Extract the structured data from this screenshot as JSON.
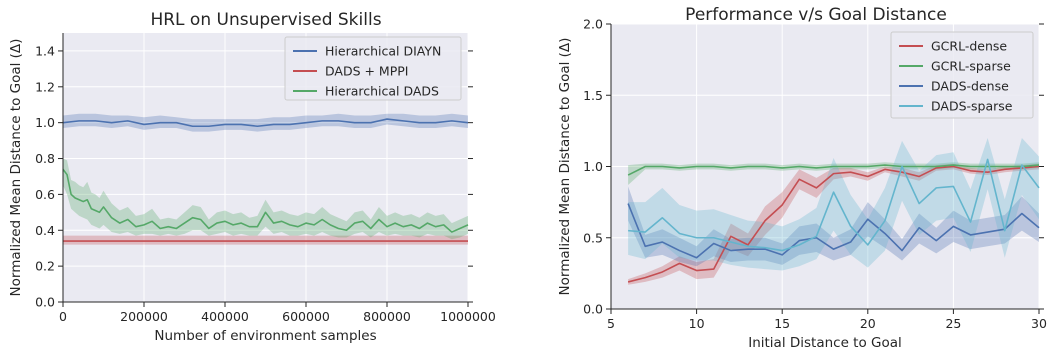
{
  "chart_data": [
    {
      "type": "line",
      "title": "HRL on Unsupervised Skills",
      "xlabel": "Number of environment samples",
      "ylabel": "Normalized Mean Distance to Goal (Δ)",
      "xlim": [
        0,
        1000000
      ],
      "ylim": [
        0.0,
        1.5
      ],
      "xticks": [
        0,
        200000,
        400000,
        600000,
        800000,
        1000000
      ],
      "xtick_labels": [
        "0",
        "200000",
        "400000",
        "600000",
        "800000",
        "1000000"
      ],
      "yticks": [
        0.0,
        0.2,
        0.4,
        0.6,
        0.8,
        1.0,
        1.2,
        1.4
      ],
      "ytick_labels": [
        "0.0",
        "0.2",
        "0.4",
        "0.6",
        "0.8",
        "1.0",
        "1.2",
        "1.4"
      ],
      "grid": true,
      "legend_position": "top-right",
      "series": [
        {
          "name": "Hierarchical DIAYN",
          "color": "#4c72b0",
          "x": [
            0,
            40000,
            80000,
            120000,
            160000,
            200000,
            240000,
            280000,
            320000,
            360000,
            400000,
            440000,
            480000,
            520000,
            560000,
            600000,
            640000,
            680000,
            720000,
            760000,
            800000,
            840000,
            880000,
            920000,
            960000,
            1000000
          ],
          "y": [
            1.0,
            1.01,
            1.01,
            1.0,
            1.01,
            0.99,
            1.0,
            1.0,
            0.98,
            0.98,
            0.99,
            0.99,
            0.98,
            0.99,
            0.99,
            1.0,
            1.01,
            1.01,
            1.0,
            1.0,
            1.02,
            1.01,
            1.0,
            1.0,
            1.01,
            1.0
          ],
          "lower": [
            0.97,
            0.98,
            0.98,
            0.97,
            0.98,
            0.96,
            0.97,
            0.97,
            0.95,
            0.95,
            0.96,
            0.96,
            0.95,
            0.96,
            0.96,
            0.97,
            0.98,
            0.98,
            0.97,
            0.97,
            0.99,
            0.98,
            0.97,
            0.97,
            0.98,
            0.97
          ],
          "upper": [
            1.04,
            1.05,
            1.05,
            1.04,
            1.04,
            1.03,
            1.04,
            1.03,
            1.02,
            1.02,
            1.02,
            1.02,
            1.02,
            1.03,
            1.03,
            1.04,
            1.04,
            1.05,
            1.04,
            1.04,
            1.05,
            1.05,
            1.04,
            1.04,
            1.05,
            1.04
          ]
        },
        {
          "name": "DADS + MPPI",
          "color": "#c44e52",
          "x": [
            0,
            1000000
          ],
          "y": [
            0.34,
            0.34
          ],
          "lower": [
            0.32,
            0.32
          ],
          "upper": [
            0.37,
            0.37
          ]
        },
        {
          "name": "Hierarchical DADS",
          "color": "#55a868",
          "x": [
            0,
            10000,
            20000,
            30000,
            40000,
            50000,
            60000,
            70000,
            80000,
            90000,
            100000,
            120000,
            140000,
            160000,
            180000,
            200000,
            220000,
            240000,
            260000,
            280000,
            300000,
            320000,
            340000,
            360000,
            380000,
            400000,
            420000,
            440000,
            460000,
            480000,
            500000,
            520000,
            540000,
            560000,
            580000,
            600000,
            620000,
            640000,
            660000,
            680000,
            700000,
            720000,
            740000,
            760000,
            780000,
            800000,
            820000,
            840000,
            860000,
            880000,
            900000,
            920000,
            940000,
            960000,
            980000,
            1000000
          ],
          "y": [
            0.74,
            0.71,
            0.6,
            0.58,
            0.57,
            0.56,
            0.57,
            0.52,
            0.51,
            0.5,
            0.53,
            0.47,
            0.44,
            0.46,
            0.42,
            0.43,
            0.45,
            0.41,
            0.42,
            0.41,
            0.44,
            0.47,
            0.46,
            0.41,
            0.44,
            0.45,
            0.43,
            0.44,
            0.42,
            0.42,
            0.5,
            0.44,
            0.45,
            0.43,
            0.42,
            0.44,
            0.43,
            0.46,
            0.43,
            0.41,
            0.4,
            0.44,
            0.45,
            0.41,
            0.46,
            0.42,
            0.44,
            0.42,
            0.43,
            0.41,
            0.44,
            0.42,
            0.43,
            0.39,
            0.41,
            0.43
          ],
          "lower": [
            0.65,
            0.6,
            0.52,
            0.5,
            0.48,
            0.47,
            0.46,
            0.43,
            0.42,
            0.41,
            0.43,
            0.39,
            0.38,
            0.39,
            0.37,
            0.38,
            0.38,
            0.37,
            0.38,
            0.37,
            0.38,
            0.4,
            0.4,
            0.37,
            0.38,
            0.39,
            0.37,
            0.38,
            0.37,
            0.37,
            0.42,
            0.38,
            0.39,
            0.37,
            0.37,
            0.38,
            0.37,
            0.39,
            0.37,
            0.36,
            0.36,
            0.38,
            0.39,
            0.36,
            0.39,
            0.37,
            0.38,
            0.37,
            0.37,
            0.36,
            0.38,
            0.37,
            0.37,
            0.35,
            0.36,
            0.38
          ],
          "upper": [
            0.8,
            0.79,
            0.68,
            0.67,
            0.65,
            0.64,
            0.67,
            0.61,
            0.6,
            0.58,
            0.62,
            0.55,
            0.51,
            0.53,
            0.48,
            0.49,
            0.52,
            0.46,
            0.47,
            0.46,
            0.5,
            0.54,
            0.53,
            0.46,
            0.5,
            0.51,
            0.49,
            0.5,
            0.47,
            0.48,
            0.57,
            0.5,
            0.51,
            0.49,
            0.48,
            0.5,
            0.49,
            0.53,
            0.49,
            0.47,
            0.45,
            0.5,
            0.51,
            0.46,
            0.53,
            0.48,
            0.5,
            0.48,
            0.49,
            0.47,
            0.5,
            0.48,
            0.49,
            0.44,
            0.46,
            0.48
          ]
        }
      ]
    },
    {
      "type": "line",
      "title": "Performance v/s Goal Distance",
      "xlabel": "Initial Distance to Goal",
      "ylabel": "Normalized Mean Distance to Goal (Δ)",
      "xlim": [
        5,
        30
      ],
      "ylim": [
        0.0,
        2.0
      ],
      "xticks": [
        5,
        10,
        15,
        20,
        25,
        30
      ],
      "xtick_labels": [
        "5",
        "10",
        "15",
        "20",
        "25",
        "30"
      ],
      "yticks": [
        0.0,
        0.5,
        1.0,
        1.5,
        2.0
      ],
      "ytick_labels": [
        "0.0",
        "0.5",
        "1.0",
        "1.5",
        "2.0"
      ],
      "grid": true,
      "legend_position": "top-right",
      "series": [
        {
          "name": "GCRL-dense",
          "color": "#c44e52",
          "x": [
            6,
            7,
            8,
            9,
            10,
            11,
            12,
            13,
            14,
            15,
            16,
            17,
            18,
            19,
            20,
            21,
            22,
            23,
            24,
            25,
            26,
            27,
            28,
            29,
            30
          ],
          "y": [
            0.19,
            0.22,
            0.26,
            0.32,
            0.27,
            0.28,
            0.51,
            0.45,
            0.62,
            0.73,
            0.91,
            0.85,
            0.95,
            0.96,
            0.93,
            0.98,
            0.96,
            0.93,
            0.99,
            1.0,
            0.97,
            0.96,
            0.98,
            0.99,
            1.0
          ],
          "lower": [
            0.17,
            0.19,
            0.22,
            0.27,
            0.21,
            0.22,
            0.42,
            0.37,
            0.52,
            0.64,
            0.84,
            0.78,
            0.91,
            0.93,
            0.9,
            0.96,
            0.93,
            0.9,
            0.97,
            0.98,
            0.95,
            0.94,
            0.96,
            0.97,
            0.98
          ],
          "upper": [
            0.21,
            0.25,
            0.3,
            0.37,
            0.33,
            0.35,
            0.6,
            0.53,
            0.72,
            0.82,
            0.98,
            0.92,
            0.99,
            0.99,
            0.96,
            1.0,
            0.99,
            0.96,
            1.01,
            1.02,
            0.99,
            0.98,
            1.0,
            1.01,
            1.02
          ]
        },
        {
          "name": "GCRL-sparse",
          "color": "#55a868",
          "x": [
            6,
            7,
            8,
            9,
            10,
            11,
            12,
            13,
            14,
            15,
            16,
            17,
            18,
            19,
            20,
            21,
            22,
            23,
            24,
            25,
            26,
            27,
            28,
            29,
            30
          ],
          "y": [
            0.94,
            1.0,
            1.0,
            0.99,
            1.0,
            1.0,
            0.99,
            1.0,
            1.0,
            0.99,
            1.0,
            0.99,
            1.0,
            1.0,
            1.0,
            1.01,
            1.0,
            1.0,
            1.0,
            1.01,
            1.0,
            1.0,
            1.0,
            1.0,
            1.01
          ],
          "lower": [
            0.87,
            0.98,
            0.98,
            0.97,
            0.98,
            0.98,
            0.97,
            0.98,
            0.98,
            0.97,
            0.98,
            0.97,
            0.98,
            0.98,
            0.98,
            0.99,
            0.98,
            0.98,
            0.98,
            0.99,
            0.98,
            0.98,
            0.98,
            0.98,
            0.99
          ],
          "upper": [
            1.01,
            1.02,
            1.02,
            1.01,
            1.02,
            1.02,
            1.01,
            1.02,
            1.02,
            1.01,
            1.02,
            1.01,
            1.02,
            1.02,
            1.02,
            1.03,
            1.02,
            1.02,
            1.02,
            1.03,
            1.02,
            1.02,
            1.02,
            1.02,
            1.03
          ]
        },
        {
          "name": "DADS-dense",
          "color": "#4c72b0",
          "x": [
            6,
            7,
            8,
            9,
            10,
            11,
            12,
            13,
            14,
            15,
            16,
            17,
            18,
            19,
            20,
            21,
            22,
            23,
            24,
            25,
            26,
            27,
            28,
            29,
            30
          ],
          "y": [
            0.74,
            0.44,
            0.47,
            0.41,
            0.36,
            0.46,
            0.41,
            0.42,
            0.42,
            0.38,
            0.48,
            0.5,
            0.42,
            0.47,
            0.63,
            0.53,
            0.41,
            0.57,
            0.48,
            0.58,
            0.52,
            0.54,
            0.56,
            0.67,
            0.57
          ],
          "lower": [
            0.62,
            0.36,
            0.38,
            0.33,
            0.3,
            0.37,
            0.33,
            0.34,
            0.34,
            0.31,
            0.38,
            0.4,
            0.34,
            0.38,
            0.51,
            0.43,
            0.34,
            0.46,
            0.39,
            0.47,
            0.42,
            0.44,
            0.46,
            0.55,
            0.47
          ],
          "upper": [
            0.86,
            0.52,
            0.56,
            0.5,
            0.44,
            0.56,
            0.49,
            0.5,
            0.5,
            0.46,
            0.58,
            0.6,
            0.5,
            0.56,
            0.75,
            0.63,
            0.49,
            0.67,
            0.57,
            0.69,
            0.62,
            0.64,
            0.66,
            0.79,
            0.67
          ]
        },
        {
          "name": "DADS-sparse",
          "color": "#64b5cd",
          "x": [
            6,
            7,
            8,
            9,
            10,
            11,
            12,
            13,
            14,
            15,
            16,
            17,
            18,
            19,
            20,
            21,
            22,
            23,
            24,
            25,
            26,
            27,
            28,
            29,
            30
          ],
          "y": [
            0.55,
            0.54,
            0.64,
            0.53,
            0.5,
            0.5,
            0.47,
            0.44,
            0.43,
            0.41,
            0.45,
            0.51,
            0.82,
            0.58,
            0.45,
            0.62,
            1.0,
            0.74,
            0.85,
            0.86,
            0.61,
            1.05,
            0.55,
            1.01,
            0.85
          ],
          "lower": [
            0.38,
            0.35,
            0.46,
            0.36,
            0.34,
            0.34,
            0.31,
            0.29,
            0.28,
            0.27,
            0.3,
            0.35,
            0.55,
            0.38,
            0.29,
            0.41,
            0.76,
            0.52,
            0.62,
            0.64,
            0.4,
            0.84,
            0.36,
            0.8,
            0.63
          ],
          "upper": [
            0.75,
            0.75,
            0.85,
            0.73,
            0.69,
            0.7,
            0.66,
            0.62,
            0.61,
            0.58,
            0.63,
            0.71,
            1.06,
            0.8,
            0.63,
            0.85,
            1.18,
            0.97,
            1.08,
            1.1,
            0.84,
            1.2,
            0.77,
            1.2,
            1.07
          ]
        }
      ]
    }
  ]
}
